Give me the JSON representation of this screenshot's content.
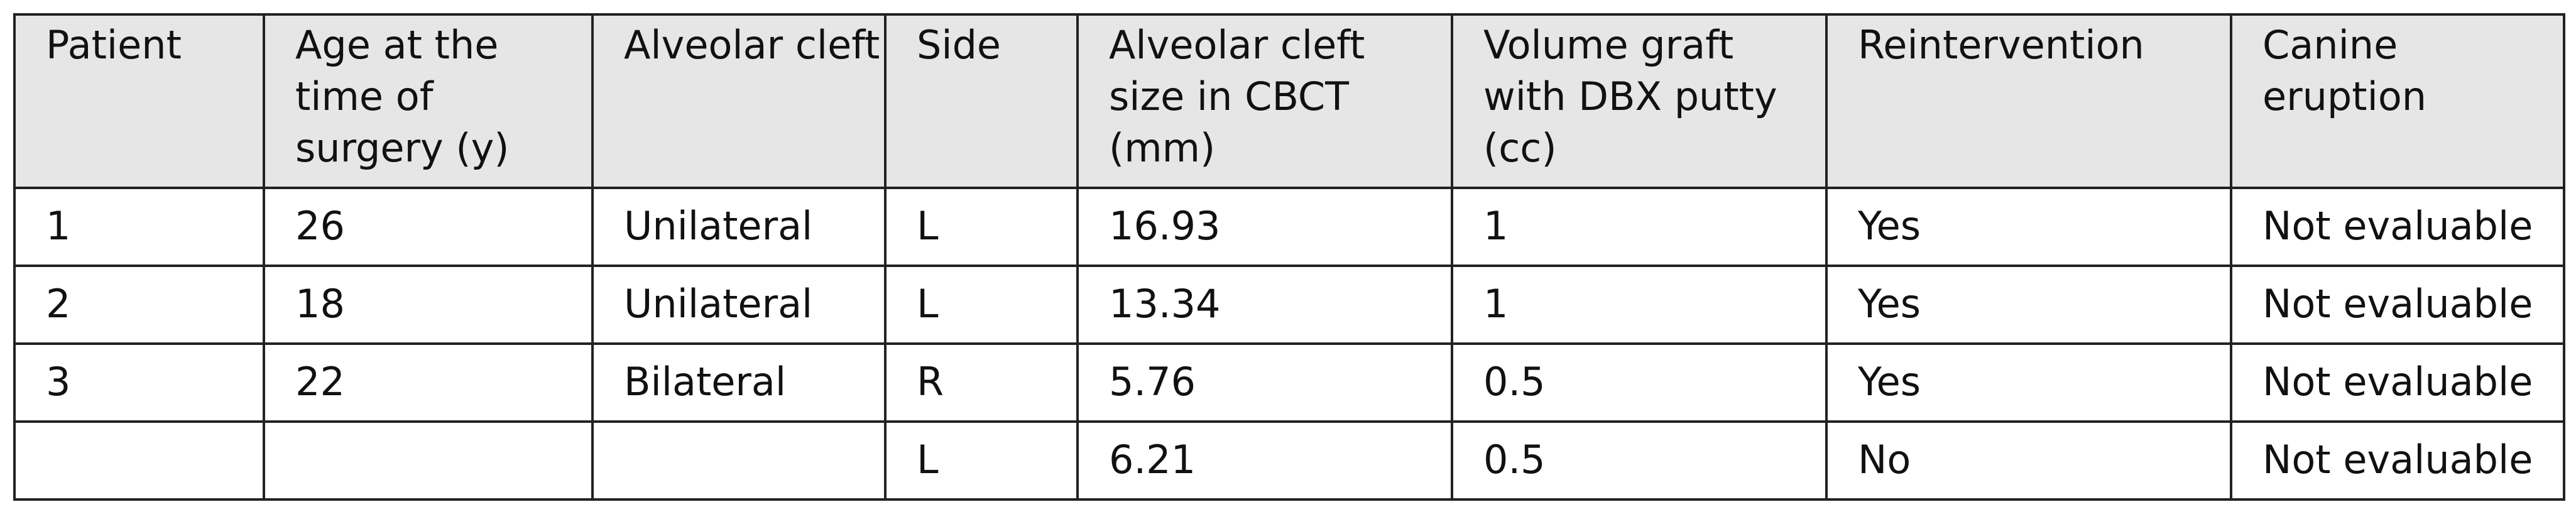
{
  "table": {
    "header": [
      "Patient",
      "Age at the time of surgery (y)",
      "Alveolar cleft",
      "Side",
      "Alveolar cleft size in CBCT (mm)",
      "Volume graft with DBX putty (cc)",
      "Reintervention",
      "Canine eruption"
    ],
    "rows": [
      [
        "1",
        "26",
        "Unilateral",
        "L",
        "16.93",
        "1",
        "Yes",
        "Not evaluable"
      ],
      [
        "2",
        "18",
        "Unilateral",
        "L",
        "13.34",
        "1",
        "Yes",
        "Not evaluable"
      ],
      [
        "3",
        "22",
        "Bilateral",
        "R",
        "5.76",
        "0.5",
        "Yes",
        "Not evaluable"
      ],
      [
        null,
        null,
        null,
        "L",
        "6.21",
        "0.5",
        "No",
        "Not evaluable"
      ]
    ]
  }
}
